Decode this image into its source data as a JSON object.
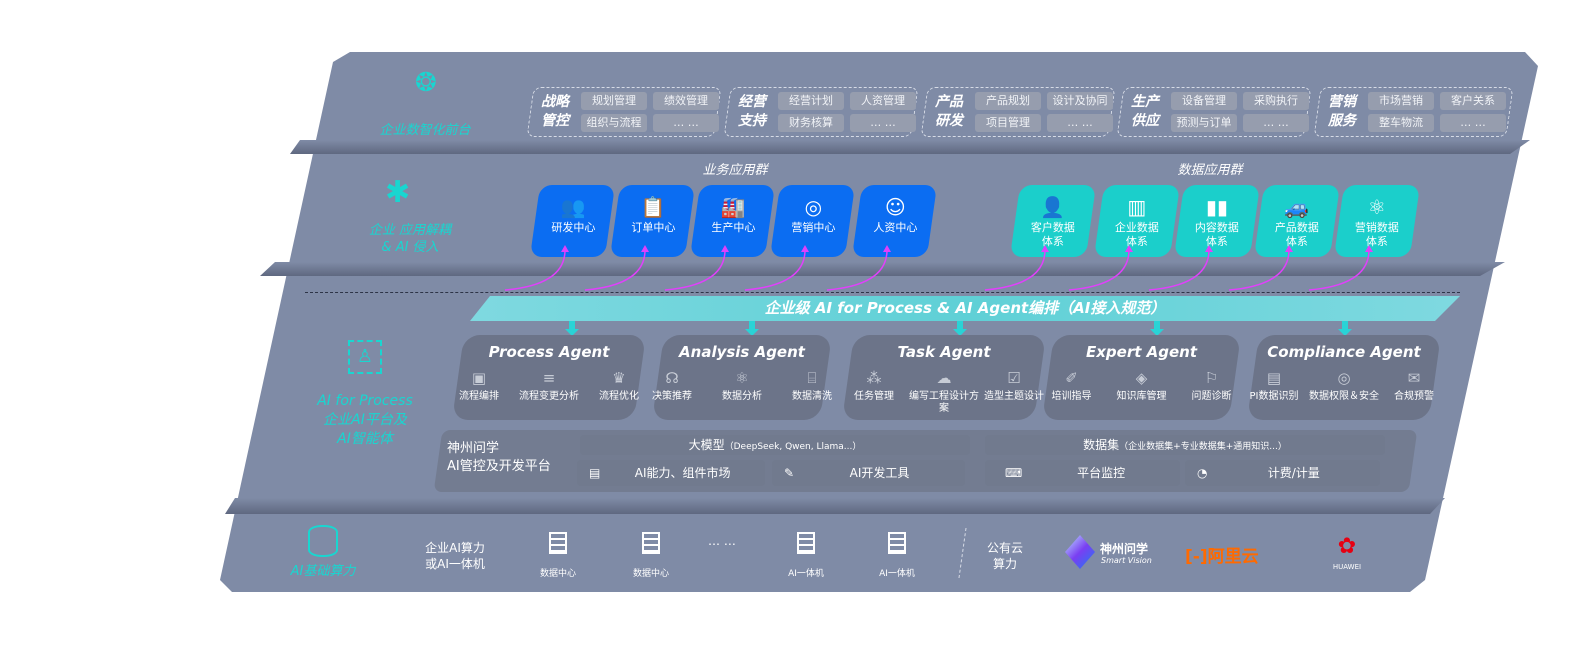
{
  "colors": {
    "panel": "#7f8ba6",
    "accent_cyan": "#19d6d0",
    "business_blue": "#0b6df2",
    "data_teal": "#1bcfcb",
    "agent_box": "#6c7489",
    "arrow_magenta": "#e040fb",
    "aliyun_orange": "#ff6a00",
    "huawei_red": "#e60012"
  },
  "front": {
    "icon": "brain-icon",
    "label": "企业数智化前台",
    "categories": [
      {
        "title1": "战略",
        "title2": "管控",
        "items": [
          "规划管理",
          "绩效管理",
          "组织与流程",
          "… …"
        ]
      },
      {
        "title1": "经营",
        "title2": "支持",
        "items": [
          "经营计划",
          "人资管理",
          "财务核算",
          "… …"
        ]
      },
      {
        "title1": "产品",
        "title2": "研发",
        "items": [
          "产品规划",
          "设计及协同",
          "项目管理",
          "… …"
        ]
      },
      {
        "title1": "生产",
        "title2": "供应",
        "items": [
          "设备管理",
          "采购执行",
          "预测与订单",
          "… …"
        ]
      },
      {
        "title1": "营销",
        "title2": "服务",
        "items": [
          "市场营销",
          "客户关系",
          "整车物流",
          "… …"
        ]
      }
    ]
  },
  "apps": {
    "icon": "molecule-icon",
    "label1": "企业 应用解耦",
    "label2": "& AI 侵入",
    "business_title": "业务应用群",
    "data_title": "数据应用群",
    "business": [
      {
        "label": "研发中心",
        "icon": "team-icon"
      },
      {
        "label": "订单中心",
        "icon": "clipboard-icon"
      },
      {
        "label": "生产中心",
        "icon": "factory-icon"
      },
      {
        "label": "营销中心",
        "icon": "target-icon"
      },
      {
        "label": "人资中心",
        "icon": "person-icon"
      }
    ],
    "data": [
      {
        "l1": "客户数据",
        "l2": "体系",
        "icon": "user-icon"
      },
      {
        "l1": "企业数据",
        "l2": "体系",
        "icon": "building-icon"
      },
      {
        "l1": "内容数据",
        "l2": "体系",
        "icon": "books-icon"
      },
      {
        "l1": "产品数据",
        "l2": "体系",
        "icon": "car-icon"
      },
      {
        "l1": "营销数据",
        "l2": "体系",
        "icon": "atom-icon"
      }
    ]
  },
  "banner": "企业级 AI for Process & AI Agent编排（AI接入规范）",
  "ai": {
    "icon": "face-scan-icon",
    "label1": "AI for Process",
    "label2": "企业AI平台及",
    "label3": "AI智能体",
    "agents": [
      {
        "name": "Process Agent",
        "features": [
          "流程编排",
          "流程变更分析",
          "流程优化"
        ]
      },
      {
        "name": "Analysis Agent",
        "features": [
          "决策推荐",
          "数据分析",
          "数据清洗"
        ]
      },
      {
        "name": "Task Agent",
        "features": [
          "任务管理",
          "编写工程设计方案",
          "造型主题设计"
        ]
      },
      {
        "name": "Expert Agent",
        "features": [
          "培训指导",
          "知识库管理",
          "问题诊断"
        ]
      },
      {
        "name": "Compliance Agent",
        "features": [
          "PI数据识别",
          "数据权限＆安全",
          "合规预警"
        ]
      }
    ]
  },
  "platform": {
    "title1": "神州问学",
    "title2": "AI管控及开发平台",
    "model_label": "大模型",
    "model_note": "（DeepSeek, Qwen, Llama...）",
    "dataset_label": "数据集",
    "dataset_note": "（企业数据集+专业数据集+通用知识...）",
    "tools": [
      "AI能力、组件市场",
      "AI开发工具",
      "平台监控",
      "计费/计量"
    ]
  },
  "infra": {
    "icon": "database-icon",
    "label": "AI基础算力",
    "enterprise1": "企业AI算力",
    "enterprise2": "或AI一体机",
    "servers": [
      "数据中心",
      "数据中心",
      "AI一体机",
      "AI一体机"
    ],
    "ellipsis": "… …",
    "public1": "公有云",
    "public2": "算力",
    "vendors": {
      "sv_cn": "神州问学",
      "sv_en": "Smart Vision",
      "aliyun": "阿里云",
      "huawei": "HUAWEI"
    }
  }
}
